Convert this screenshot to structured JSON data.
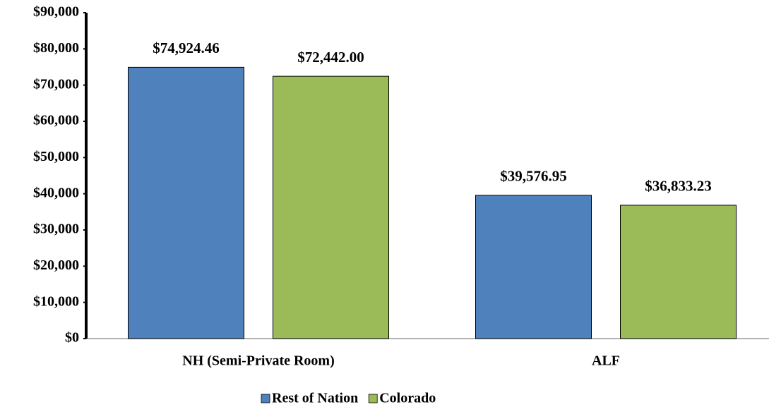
{
  "chart_data": {
    "type": "bar",
    "categories": [
      "NH (Semi-Private Room)",
      "ALF"
    ],
    "series": [
      {
        "name": "Rest of Nation",
        "color": "#4f81bd",
        "values": [
          74924.46,
          39576.95
        ],
        "value_labels": [
          "$74,924.46",
          "$39,576.95"
        ]
      },
      {
        "name": "Colorado",
        "color": "#9bbb59",
        "values": [
          72442.0,
          36833.23
        ],
        "value_labels": [
          "$72,442.00",
          "$36,833.23"
        ]
      }
    ],
    "ylim": [
      0,
      90000
    ],
    "yticks": [
      {
        "value": 0,
        "label": "$0"
      },
      {
        "value": 10000,
        "label": "$10,000"
      },
      {
        "value": 20000,
        "label": "$20,000"
      },
      {
        "value": 30000,
        "label": "$30,000"
      },
      {
        "value": 40000,
        "label": "$40,000"
      },
      {
        "value": 50000,
        "label": "$50,000"
      },
      {
        "value": 60000,
        "label": "$60,000"
      },
      {
        "value": 70000,
        "label": "$70,000"
      },
      {
        "value": 80000,
        "label": "$80,000"
      },
      {
        "value": 90000,
        "label": "$90,000"
      }
    ],
    "grid": false,
    "legend": "bottom"
  }
}
